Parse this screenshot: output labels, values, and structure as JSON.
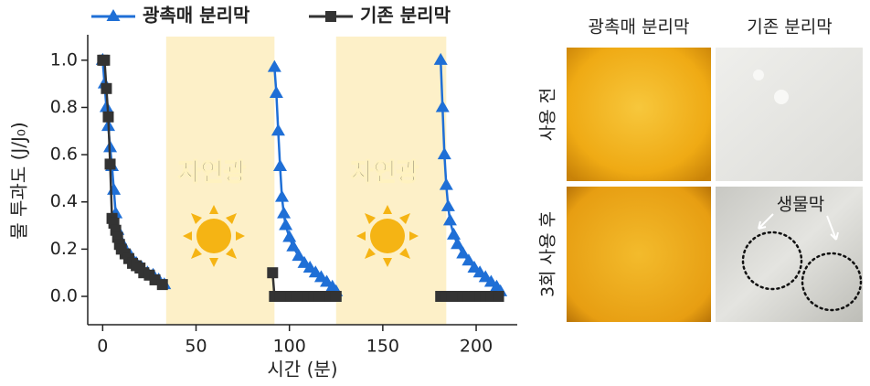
{
  "chart_data": {
    "type": "line",
    "x_label": "시간 (분)",
    "y_label": "물 투과도 (J/J₀)",
    "xlim": [
      -8,
      222
    ],
    "ylim": [
      -0.12,
      1.1
    ],
    "xticks": [
      0,
      50,
      100,
      150,
      200
    ],
    "yticks": [
      {
        "value": 0,
        "label": "0.0"
      },
      0.2,
      0.4,
      0.6,
      0.8,
      {
        "value": 1,
        "label": "1.0"
      }
    ],
    "shaded_regions": [
      [
        34,
        92
      ],
      [
        125,
        184
      ]
    ],
    "region_label": "자연광",
    "series": [
      {
        "name": "광촉매 분리막",
        "color": "#1f6fd6",
        "marker": "triangle",
        "x": [
          0,
          1,
          2,
          3,
          4,
          5,
          6,
          7,
          8,
          10,
          12,
          15,
          18,
          21,
          24,
          27,
          30,
          33,
          60,
          92,
          93,
          94,
          95,
          96,
          97,
          98,
          100,
          102,
          105,
          108,
          111,
          114,
          117,
          120,
          123,
          125,
          150,
          181,
          182,
          183,
          184,
          185,
          186,
          188,
          190,
          193,
          196,
          199,
          202,
          205,
          208,
          211,
          213
        ],
        "values": [
          1.0,
          0.9,
          0.8,
          0.72,
          0.63,
          0.55,
          0.45,
          0.35,
          0.28,
          0.23,
          0.2,
          0.17,
          0.14,
          0.12,
          0.1,
          0.09,
          0.07,
          0.05,
          null,
          0.97,
          0.86,
          0.7,
          0.55,
          0.42,
          0.35,
          0.3,
          0.25,
          0.21,
          0.17,
          0.14,
          0.12,
          0.1,
          0.08,
          0.06,
          0.04,
          0.02,
          null,
          1.0,
          0.8,
          0.6,
          0.47,
          0.38,
          0.32,
          0.26,
          0.22,
          0.18,
          0.15,
          0.12,
          0.1,
          0.08,
          0.06,
          0.04,
          0.02
        ]
      },
      {
        "name": "기존 분리막",
        "color": "#333333",
        "marker": "square",
        "x": [
          0,
          1,
          2,
          3,
          4,
          5,
          6,
          7,
          8,
          9,
          10,
          12,
          14,
          16,
          18,
          20,
          22,
          25,
          28,
          32,
          60,
          91,
          92,
          95,
          98,
          101,
          104,
          107,
          110,
          113,
          116,
          119,
          122,
          125,
          150,
          181,
          184,
          187,
          190,
          193,
          196,
          199,
          202,
          205,
          208,
          212
        ],
        "values": [
          1.0,
          1.0,
          0.88,
          0.76,
          0.56,
          0.33,
          0.31,
          0.28,
          0.25,
          0.22,
          0.2,
          0.18,
          0.16,
          0.14,
          0.13,
          0.12,
          0.1,
          0.09,
          0.07,
          0.05,
          null,
          0.1,
          0,
          0,
          0,
          0,
          0,
          0,
          0,
          0,
          0,
          0,
          0,
          0,
          null,
          0,
          0,
          0,
          0,
          0,
          0,
          0,
          0,
          0,
          0,
          0
        ]
      }
    ]
  },
  "photo_panel": {
    "column_headers": [
      "광촉매 분리막",
      "기존 분리막"
    ],
    "row_labels": [
      "사용 전",
      "3회 사용 후"
    ],
    "annotation": "생물막"
  }
}
